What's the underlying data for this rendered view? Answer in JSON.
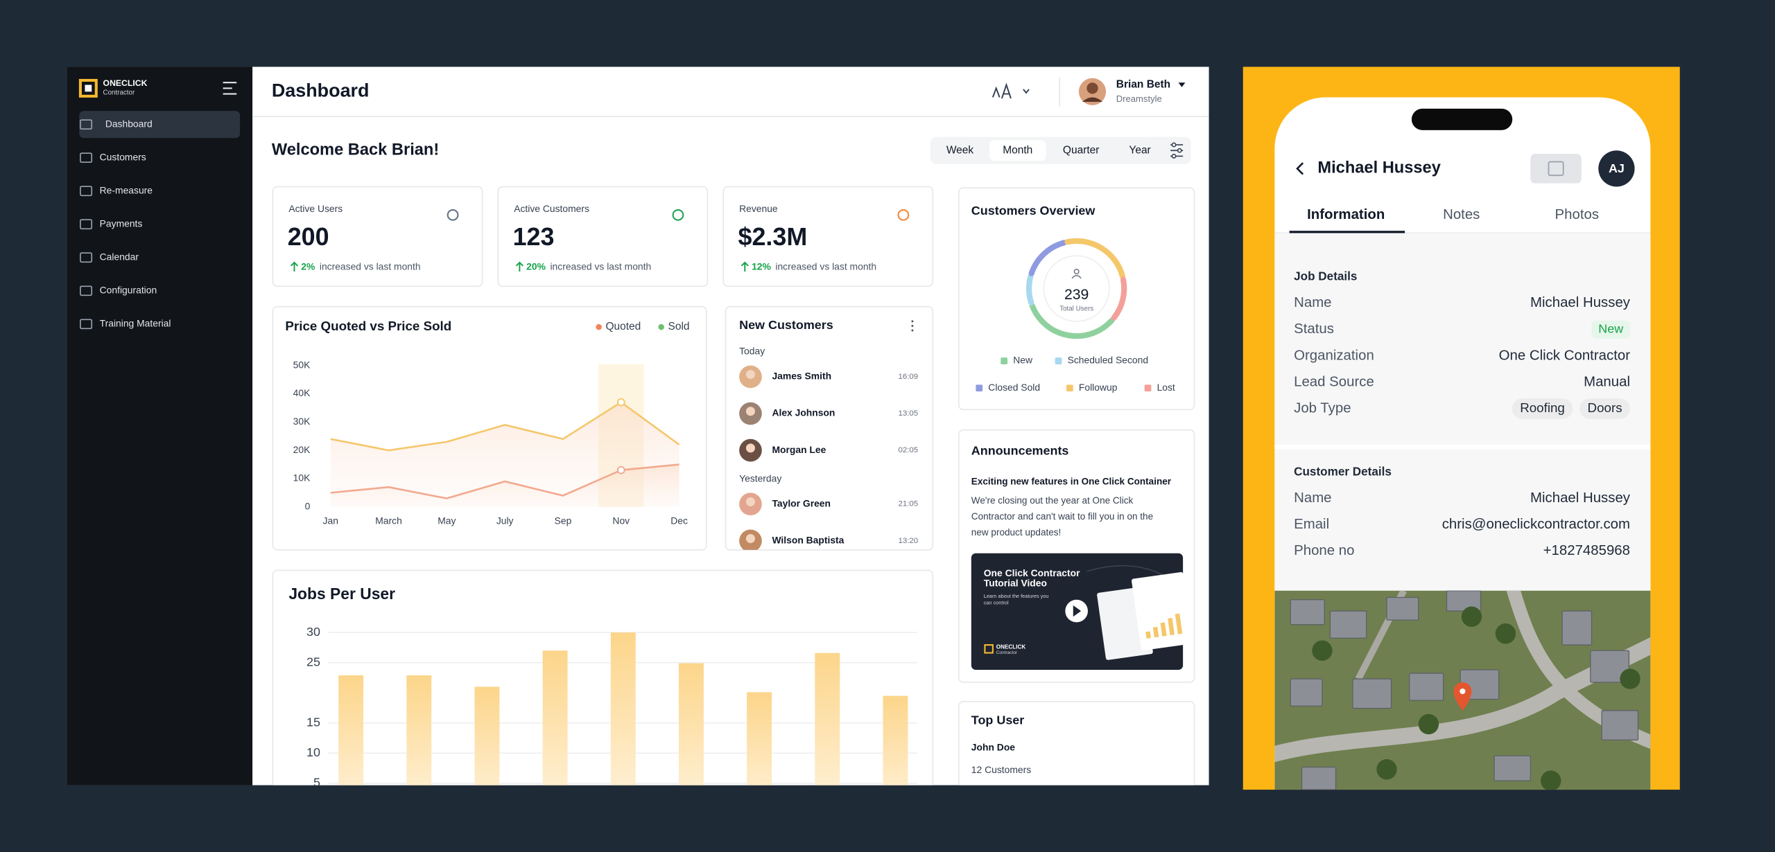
{
  "sidebar": {
    "brand": "ONECLICK",
    "brand_sub": "Contractor",
    "menu": [
      "Dashboard",
      "Customers",
      "Re-measure",
      "Payments",
      "Calendar",
      "Configuration",
      "Training Material"
    ]
  },
  "header": {
    "title": "Dashboard",
    "user_name": "Brian Beth",
    "user_org": "Dreamstyle"
  },
  "welcome": "Welcome Back Brian!",
  "periods": [
    "Week",
    "Month",
    "Quarter",
    "Year"
  ],
  "stats": [
    {
      "label": "Active Users",
      "value": "200",
      "change": "2%",
      "note": "increased vs last month",
      "icon_color": "#64748b"
    },
    {
      "label": "Active Customers",
      "value": "123",
      "change": "20%",
      "note": "increased vs last month",
      "icon_color": "#22a35a"
    },
    {
      "label": "Revenue",
      "value": "$2.3M",
      "change": "12%",
      "note": "increased vs last month",
      "icon_color": "#f08a3c"
    }
  ],
  "chart_data": [
    {
      "type": "line",
      "title": "Price Quoted vs Price Sold",
      "categories": [
        "Jan",
        "March",
        "May",
        "July",
        "Sep",
        "Nov",
        "Dec"
      ],
      "series": [
        {
          "name": "Quoted",
          "color": "#f5c76b",
          "legend_color": "#f0845c",
          "values": [
            24000,
            20000,
            23000,
            29000,
            24000,
            37000,
            22000
          ]
        },
        {
          "name": "Sold",
          "color": "#f2a98f",
          "legend_color": "#6cc070",
          "values": [
            5000,
            7000,
            3000,
            9000,
            4000,
            13000,
            15000
          ]
        }
      ],
      "ylim": [
        0,
        50000
      ],
      "yticks": [
        {
          "value": 0,
          "label": "0"
        },
        {
          "value": 10000,
          "label": "10K"
        },
        {
          "value": 20000,
          "label": "20K"
        },
        {
          "value": 30000,
          "label": "30K"
        },
        {
          "value": 40000,
          "label": "40K"
        },
        {
          "value": 50000,
          "label": "50K"
        }
      ],
      "grid": false
    },
    {
      "type": "bar",
      "title": "Jobs Per User",
      "values": [
        22.9,
        22.9,
        21,
        27,
        30,
        24.9,
        20.1,
        26.6,
        19.5
      ],
      "color": "#fcd58a",
      "ylim": [
        0,
        30
      ],
      "yticks": [
        30,
        25,
        15,
        10,
        5
      ],
      "grid": true
    },
    {
      "type": "donut",
      "title": "Customers Overview",
      "total": 239,
      "total_label": "Total Users",
      "categories": [
        "New",
        "Scheduled Second",
        "Closed Sold",
        "Followup",
        "Lost"
      ],
      "values": [
        80,
        24,
        40,
        60,
        35
      ],
      "colors": [
        "#8fd19e",
        "#a8d8f0",
        "#8f9be0",
        "#f5c76b",
        "#f4a09a"
      ]
    }
  ],
  "new_customers": {
    "title": "New Customers",
    "groups": [
      {
        "label": "Today",
        "items": [
          {
            "name": "James Smith",
            "time": "16:09"
          },
          {
            "name": "Alex Johnson",
            "time": "13:05"
          },
          {
            "name": "Morgan Lee",
            "time": "02:05"
          }
        ]
      },
      {
        "label": "Yesterday",
        "items": [
          {
            "name": "Taylor Green",
            "time": "21:05"
          },
          {
            "name": "Wilson Baptista",
            "time": "13:20"
          }
        ]
      }
    ]
  },
  "announcements": {
    "title": "Announcements",
    "headline": "Exciting new features in One Click Container",
    "body_lines": [
      "We're closing out the year at One Click",
      "Contractor and can't wait to fill you in on the",
      "new product updates!"
    ],
    "video_title_lines": [
      "One Click Contractor",
      "Tutorial Video"
    ],
    "video_sub_lines": [
      "Learn about the features you",
      "can control"
    ],
    "video_brand": "ONECLICK",
    "video_brand_sub": "Contractor"
  },
  "top_user": {
    "title": "Top User",
    "name": "John Doe",
    "customers": "12 Customers"
  },
  "phone": {
    "name": "Michael Hussey",
    "avatar": "AJ",
    "tabs": [
      "Information",
      "Notes",
      "Photos"
    ],
    "sections": [
      {
        "title": "Job Details",
        "rows": [
          {
            "label": "Name",
            "value": "Michael Hussey"
          },
          {
            "label": "Status",
            "value": "New",
            "color": "#16a34a"
          },
          {
            "label": "Organization",
            "value": "One Click Contractor"
          },
          {
            "label": "Lead Source",
            "value": "Manual"
          },
          {
            "label": "Job Type",
            "tags": [
              "Roofing",
              "Doors"
            ]
          }
        ]
      },
      {
        "title": "Customer Details",
        "rows": [
          {
            "label": "Name",
            "value": "Michael Hussey"
          },
          {
            "label": "Email",
            "value": "chris@oneclickcontractor.com"
          },
          {
            "label": "Phone no",
            "value": "+1827485968"
          }
        ]
      }
    ]
  }
}
